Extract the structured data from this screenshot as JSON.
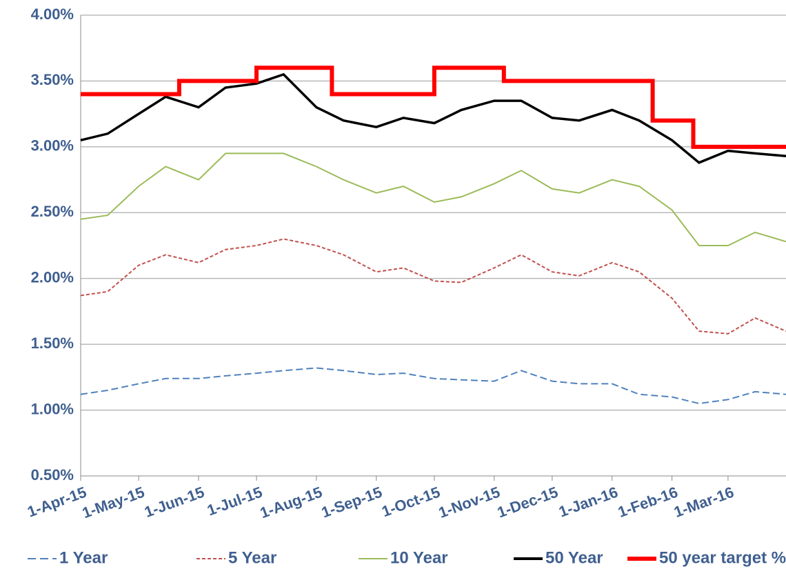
{
  "chart_data": {
    "type": "line",
    "x": [
      "2015-04-01",
      "2015-04-15",
      "2015-05-01",
      "2015-05-15",
      "2015-06-01",
      "2015-06-15",
      "2015-07-01",
      "2015-07-15",
      "2015-08-01",
      "2015-08-15",
      "2015-09-01",
      "2015-09-15",
      "2015-10-01",
      "2015-10-15",
      "2015-11-01",
      "2015-11-15",
      "2015-12-01",
      "2015-12-15",
      "2016-01-01",
      "2016-01-15",
      "2016-02-01",
      "2016-02-15",
      "2016-03-01",
      "2016-03-15",
      "2016-03-31"
    ],
    "series": [
      {
        "name": "1 Year",
        "color": "#4f81bd",
        "dash": true,
        "values": [
          1.12,
          1.15,
          1.2,
          1.24,
          1.24,
          1.26,
          1.28,
          1.3,
          1.32,
          1.3,
          1.27,
          1.28,
          1.24,
          1.23,
          1.22,
          1.3,
          1.22,
          1.2,
          1.2,
          1.12,
          1.1,
          1.05,
          1.08,
          1.14,
          1.12
        ]
      },
      {
        "name": "5 Year",
        "color": "#c0504d",
        "dash": true,
        "values": [
          1.87,
          1.9,
          2.1,
          2.18,
          2.12,
          2.22,
          2.25,
          2.3,
          2.25,
          2.18,
          2.05,
          2.08,
          1.98,
          1.97,
          2.08,
          2.18,
          2.05,
          2.02,
          2.12,
          2.05,
          1.85,
          1.6,
          1.58,
          1.7,
          1.6
        ]
      },
      {
        "name": "10 Year",
        "color": "#9bbb59",
        "values": [
          2.45,
          2.48,
          2.7,
          2.85,
          2.75,
          2.95,
          2.95,
          2.95,
          2.85,
          2.75,
          2.65,
          2.7,
          2.58,
          2.62,
          2.72,
          2.82,
          2.68,
          2.65,
          2.75,
          2.7,
          2.52,
          2.25,
          2.25,
          2.35,
          2.28
        ]
      },
      {
        "name": "50 Year",
        "color": "#000000",
        "values": [
          3.05,
          3.1,
          3.25,
          3.38,
          3.3,
          3.45,
          3.48,
          3.55,
          3.3,
          3.2,
          3.15,
          3.22,
          3.18,
          3.28,
          3.35,
          3.35,
          3.22,
          3.2,
          3.28,
          3.2,
          3.05,
          2.88,
          2.97,
          2.95,
          2.93
        ]
      },
      {
        "name": "50 year target %",
        "color": "#ff0000",
        "x": [
          "2015-04-01",
          "2015-05-22",
          "2015-05-22",
          "2015-07-01",
          "2015-07-01",
          "2015-08-09",
          "2015-08-09",
          "2015-10-01",
          "2015-10-01",
          "2015-11-06",
          "2015-11-06",
          "2016-01-22",
          "2016-01-22",
          "2016-02-12",
          "2016-02-12",
          "2016-03-31"
        ],
        "values": [
          3.4,
          3.4,
          3.5,
          3.5,
          3.6,
          3.6,
          3.4,
          3.4,
          3.6,
          3.6,
          3.5,
          3.5,
          3.2,
          3.2,
          3.0,
          3.0
        ]
      }
    ],
    "xlim": [
      "2015-04-01",
      "2016-03-31"
    ],
    "xticks": [
      {
        "value": "2015-04-01",
        "label": "1-Apr-15"
      },
      {
        "value": "2015-05-01",
        "label": "1-May-15"
      },
      {
        "value": "2015-06-01",
        "label": "1-Jun-15"
      },
      {
        "value": "2015-07-01",
        "label": "1-Jul-15"
      },
      {
        "value": "2015-08-01",
        "label": "1-Aug-15"
      },
      {
        "value": "2015-09-01",
        "label": "1-Sep-15"
      },
      {
        "value": "2015-10-01",
        "label": "1-Oct-15"
      },
      {
        "value": "2015-11-01",
        "label": "1-Nov-15"
      },
      {
        "value": "2015-12-01",
        "label": "1-Dec-15"
      },
      {
        "value": "2016-01-01",
        "label": "1-Jan-16"
      },
      {
        "value": "2016-02-01",
        "label": "1-Feb-16"
      },
      {
        "value": "2016-03-01",
        "label": "1-Mar-16"
      }
    ],
    "ylim": [
      0.5,
      4.0
    ],
    "yticks": [
      {
        "value": 0.5,
        "label": "0.50%"
      },
      {
        "value": 1.0,
        "label": "1.00%"
      },
      {
        "value": 1.5,
        "label": "1.50%"
      },
      {
        "value": 2.0,
        "label": "2.00%"
      },
      {
        "value": 2.5,
        "label": "2.50%"
      },
      {
        "value": 3.0,
        "label": "3.00%"
      },
      {
        "value": 3.5,
        "label": "3.50%"
      },
      {
        "value": 4.0,
        "label": "4.00%"
      }
    ],
    "grid": true
  }
}
